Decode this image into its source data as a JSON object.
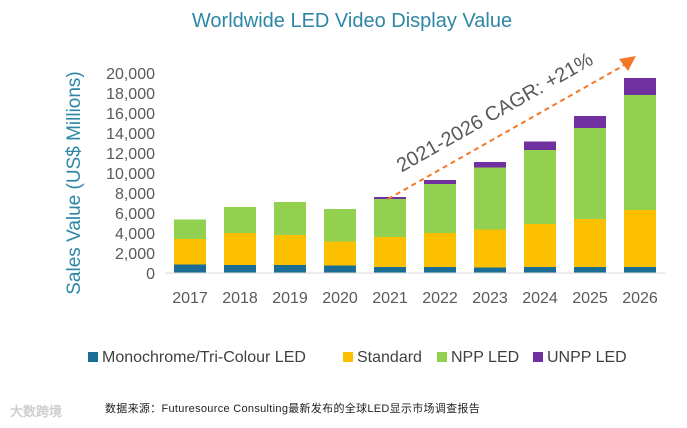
{
  "chart_data": {
    "type": "bar",
    "stacked": true,
    "title": "Worldwide LED Video Display Value",
    "ylabel": "Sales Value (US$ Millions)",
    "xlabel": "",
    "ylim": [
      0,
      20000
    ],
    "yticks": [
      0,
      2000,
      4000,
      6000,
      8000,
      10000,
      12000,
      14000,
      16000,
      18000,
      20000
    ],
    "ytick_labels": [
      "0",
      "2,000",
      "4,000",
      "6,000",
      "8,000",
      "10,000",
      "12,000",
      "14,000",
      "16,000",
      "18,000",
      "20,000"
    ],
    "categories": [
      "2017",
      "2018",
      "2019",
      "2020",
      "2021",
      "2022",
      "2023",
      "2024",
      "2025",
      "2026"
    ],
    "series": [
      {
        "name": "Monochrome/Tri-Colour LED",
        "color": "#1a6e96",
        "values": [
          850,
          800,
          800,
          750,
          600,
          600,
          550,
          600,
          600,
          600
        ]
      },
      {
        "name": "Standard",
        "color": "#fcc000",
        "values": [
          2550,
          3200,
          3000,
          2400,
          3000,
          3400,
          3800,
          4300,
          4800,
          5700
        ]
      },
      {
        "name": "NPP LED",
        "color": "#92d050",
        "values": [
          1950,
          2600,
          3300,
          3250,
          3800,
          4900,
          6200,
          7400,
          9100,
          11500
        ]
      },
      {
        "name": "UNPP LED",
        "color": "#7030a0",
        "values": [
          0,
          0,
          0,
          0,
          200,
          400,
          550,
          850,
          1200,
          1700
        ]
      }
    ],
    "legend_position": "bottom",
    "annotation": {
      "text": "2021-2026 CAGR: +21%",
      "arrow_color": "#f4782a"
    },
    "grid": false
  },
  "source": "数据来源：Futuresource Consulting最新发布的全球LED显示市场调查报告",
  "watermark": "大数跨境"
}
